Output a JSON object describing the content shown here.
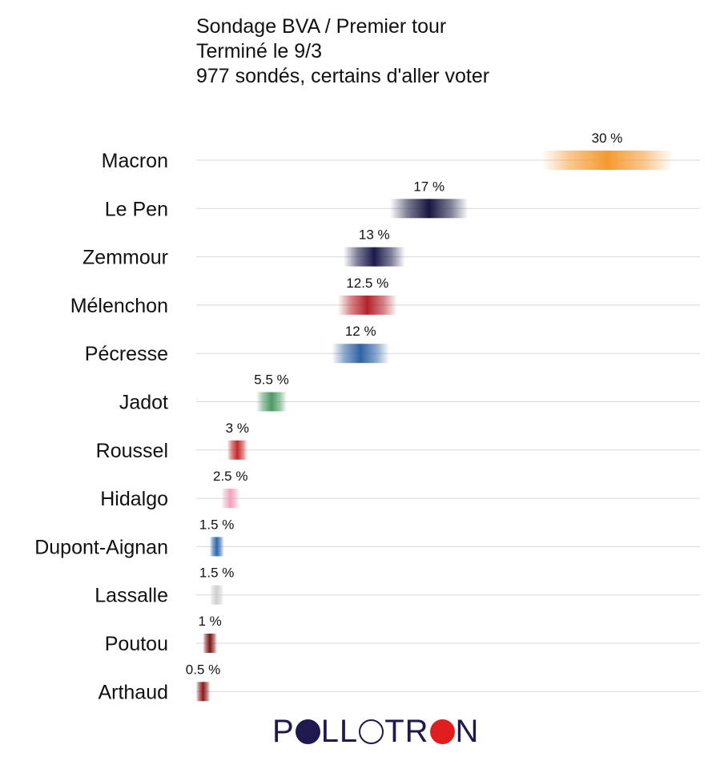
{
  "chart_data": {
    "type": "bar",
    "title_lines": [
      "Sondage BVA / Premier tour",
      "Terminé le 9/3",
      "977 sondés, certains d'aller voter"
    ],
    "categories": [
      "Macron",
      "Le Pen",
      "Zemmour",
      "Mélenchon",
      "Pécresse",
      "Jadot",
      "Roussel",
      "Hidalgo",
      "Dupont-Aignan",
      "Lassalle",
      "Poutou",
      "Arthaud"
    ],
    "values": [
      30,
      17,
      13,
      12.5,
      12,
      5.5,
      3,
      2.5,
      1.5,
      1.5,
      1,
      0.5
    ],
    "value_labels": [
      "30 %",
      "17 %",
      "13 %",
      "12.5 %",
      "12 %",
      "5.5 %",
      "3 %",
      "2.5 %",
      "1.5 %",
      "1.5 %",
      "1 %",
      "0.5 %"
    ],
    "colors": [
      "#f59a2f",
      "#17163f",
      "#1b1a4a",
      "#b5232a",
      "#2f64a3",
      "#4c9a63",
      "#c32a2a",
      "#f2a3bd",
      "#2a66ad",
      "#cfcfcf",
      "#7a1515",
      "#8b1a1a"
    ],
    "xlim": [
      0,
      36
    ],
    "orientation": "horizontal",
    "grid": true
  },
  "logo": {
    "parts": [
      "P",
      "LL",
      "TR",
      "N"
    ],
    "dot_colors": [
      "#1e1a4f",
      "#ffffff",
      "#e01e1e"
    ]
  }
}
